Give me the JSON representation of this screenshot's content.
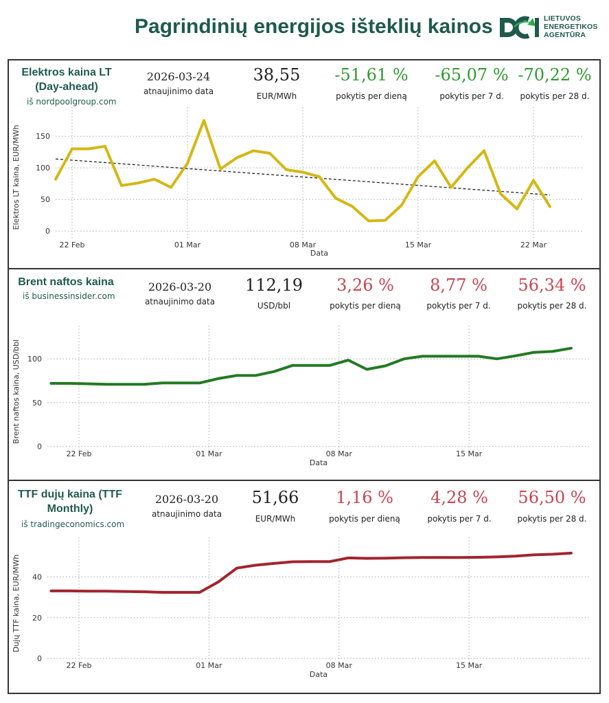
{
  "header": {
    "title": "Pagrindinių energijos išteklių kainos",
    "logo_lines": [
      "LIETUVOS",
      "ENERGETIKOS",
      "AGENTŪRA"
    ]
  },
  "colors": {
    "brand": "#1f5a4c",
    "positive": "#2e9a2e",
    "negative": "#c9444f",
    "electricity_line": "#d4b714",
    "brent_line": "#237a22",
    "ttf_line": "#a3242e"
  },
  "panels": [
    {
      "title_lines": [
        "Elektros kaina LT",
        "(Day-ahead)"
      ],
      "source": "iš nordpoolgroup.com",
      "update_date": "2026-03-24",
      "update_label": "atnaujinimo data",
      "price": "38,55",
      "unit": "EUR/MWh",
      "changes": [
        {
          "value": "-51,61 %",
          "label": "pokytis per dieną",
          "status": "positive"
        },
        {
          "value": "-65,07 %",
          "label": "pokytis per 7 d.",
          "status": "positive"
        },
        {
          "value": "-70,22 %",
          "label": "pokytis per 28 d.",
          "status": "positive"
        }
      ]
    },
    {
      "title_lines": [
        "Brent naftos kaina"
      ],
      "source": "iš businessinsider.com",
      "update_date": "2026-03-20",
      "update_label": "atnaujinimo data",
      "price": "112,19",
      "unit": "USD/bbl",
      "changes": [
        {
          "value": "3,26 %",
          "label": "pokytis per dieną",
          "status": "negative"
        },
        {
          "value": "8,77 %",
          "label": "pokytis per 7 d.",
          "status": "negative"
        },
        {
          "value": "56,34 %",
          "label": "pokytis per 28 d.",
          "status": "negative"
        }
      ]
    },
    {
      "title_lines": [
        "TTF dujų kaina (TTF",
        "Monthly)"
      ],
      "source": "iš tradingeconomics.com",
      "update_date": "2026-03-20",
      "update_label": "atnaujinimo data",
      "price": "51,66",
      "unit": "EUR/MWh",
      "changes": [
        {
          "value": "1,16 %",
          "label": "pokytis per dieną",
          "status": "negative"
        },
        {
          "value": "4,28 %",
          "label": "pokytis per 7 d.",
          "status": "negative"
        },
        {
          "value": "56,50 %",
          "label": "pokytis per 28 d.",
          "status": "negative"
        }
      ]
    }
  ],
  "chart_data": [
    {
      "type": "line",
      "title": "Elektros kaina LT (Day-ahead)",
      "xlabel": "Data",
      "ylabel": "Elektros LT kaina, EUR/MWh",
      "x_start": "2026-02-21",
      "x_range": [
        0,
        32
      ],
      "ylim": [
        -15,
        185
      ],
      "yticks": [
        0,
        50,
        100,
        150
      ],
      "xticks": [
        {
          "x": 1,
          "label": "22 Feb"
        },
        {
          "x": 8,
          "label": "01 Mar"
        },
        {
          "x": 15,
          "label": "08 Mar"
        },
        {
          "x": 22,
          "label": "15 Mar"
        },
        {
          "x": 29,
          "label": "22 Mar"
        }
      ],
      "grid": true,
      "series": [
        {
          "name": "Elektros kaina",
          "x": [
            0,
            1,
            2,
            3,
            4,
            5,
            6,
            7,
            8,
            9,
            10,
            11,
            12,
            13,
            14,
            15,
            16,
            17,
            18,
            19,
            20,
            21,
            22,
            23,
            24,
            25,
            26,
            27,
            28,
            29,
            30,
            31
          ],
          "values": [
            82,
            130,
            130,
            134,
            72,
            76,
            82,
            69,
            107,
            175,
            98,
            116,
            127,
            123,
            97,
            93,
            86,
            52,
            39,
            16,
            17,
            41,
            86,
            111,
            69,
            100,
            127,
            59,
            35,
            80,
            38.55,
            null
          ]
        }
      ],
      "trendline": {
        "style": "dashed",
        "start": [
          0,
          114
        ],
        "end": [
          30,
          57
        ]
      }
    },
    {
      "type": "line",
      "title": "Brent naftos kaina",
      "xlabel": "Data",
      "ylabel": "Brent naftos kaina, USD/bbl",
      "x_start": "2026-02-20",
      "x_range": [
        -0.2,
        29
      ],
      "ylim": [
        -5,
        130
      ],
      "yticks": [
        0,
        50,
        100
      ],
      "xticks": [
        {
          "x": 1.5,
          "label": "22 Feb"
        },
        {
          "x": 8.5,
          "label": "01 Mar"
        },
        {
          "x": 15.5,
          "label": "08 Mar"
        },
        {
          "x": 22.5,
          "label": "15 Mar"
        }
      ],
      "grid": true,
      "series": [
        {
          "name": "Brent",
          "x": [
            0,
            1,
            2,
            3,
            4,
            5,
            6,
            7,
            8,
            9,
            10,
            11,
            12,
            13,
            14,
            15,
            16,
            17,
            18,
            19,
            20,
            21,
            22,
            23,
            24,
            25,
            26,
            27,
            28
          ],
          "values": [
            72,
            72,
            71.5,
            71,
            71,
            71,
            72.5,
            72.5,
            72.5,
            77.5,
            81,
            81,
            85.5,
            92.5,
            92.5,
            92.5,
            98.5,
            88,
            92,
            100,
            103,
            103,
            103,
            103,
            100,
            103.5,
            107.5,
            108.5,
            112.19
          ]
        }
      ]
    },
    {
      "type": "line",
      "title": "TTF dujų kaina (TTF Monthly)",
      "xlabel": "Data",
      "ylabel": "Dujų TTF kaina, EUR/MWh",
      "x_start": "2026-02-20",
      "x_range": [
        -0.2,
        29
      ],
      "ylim": [
        -2,
        56
      ],
      "yticks": [
        0,
        20,
        40
      ],
      "xticks": [
        {
          "x": 1.5,
          "label": "22 Feb"
        },
        {
          "x": 8.5,
          "label": "01 Mar"
        },
        {
          "x": 15.5,
          "label": "08 Mar"
        },
        {
          "x": 22.5,
          "label": "15 Mar"
        }
      ],
      "grid": true,
      "series": [
        {
          "name": "TTF",
          "x": [
            0,
            1,
            2,
            3,
            4,
            5,
            6,
            7,
            8,
            9,
            10,
            11,
            12,
            13,
            14,
            15,
            16,
            17,
            18,
            19,
            20,
            21,
            22,
            23,
            24,
            25,
            26,
            27,
            28
          ],
          "values": [
            33.1,
            33.1,
            33,
            33,
            32.8,
            32.7,
            32.4,
            32.4,
            32.4,
            37.5,
            44.3,
            45.7,
            46.6,
            47.4,
            47.5,
            47.5,
            49.3,
            49.1,
            49.2,
            49.4,
            49.5,
            49.5,
            49.5,
            49.6,
            49.8,
            50.2,
            50.8,
            51.1,
            51.66
          ]
        }
      ]
    }
  ]
}
